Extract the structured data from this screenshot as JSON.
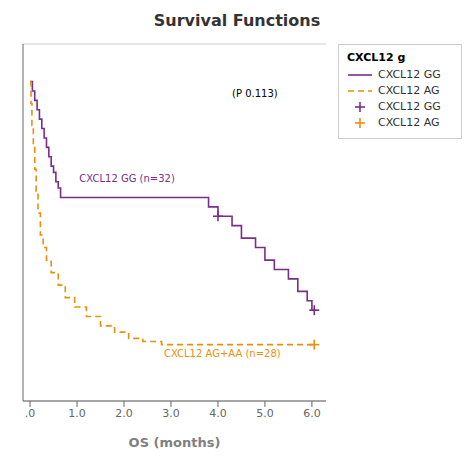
{
  "chart_data": {
    "type": "line",
    "title": "Survival Functions",
    "xlabel": "OS (months)",
    "xlim": [
      -0.15,
      6.3
    ],
    "ylim": [
      -0.02,
      1.12
    ],
    "xticks": [
      {
        "value": 0,
        "label": ".0"
      },
      {
        "value": 1.0,
        "label": "1.0"
      },
      {
        "value": 2.0,
        "label": "2.0"
      },
      {
        "value": 3.0,
        "label": "3.0"
      },
      {
        "value": 4.0,
        "label": "4.0"
      },
      {
        "value": 5.0,
        "label": "5.0"
      },
      {
        "value": 6.0,
        "label": "6.0"
      }
    ],
    "yticks": [
      0,
      0.25,
      0.5,
      0.75,
      1.0
    ],
    "tick_labels": "x",
    "grid": true,
    "legend": "right",
    "legend_title": "CXCL12 g",
    "series": [
      {
        "name": "CXCL12 GG",
        "type": "step",
        "color": "#7b2d8b",
        "line_style": "solid",
        "x": [
          0,
          0.05,
          0.1,
          0.15,
          0.2,
          0.25,
          0.3,
          0.35,
          0.4,
          0.45,
          0.5,
          0.55,
          0.6,
          0.65,
          0.7,
          0.75,
          0.8,
          0.9,
          1.0,
          1.5,
          2.0,
          2.5,
          3.0,
          3.5,
          3.8,
          4.0,
          4.3,
          4.5,
          4.8,
          5.0,
          5.2,
          5.5,
          5.7,
          5.9,
          6.0,
          6.1
        ],
        "values": [
          1.0,
          0.97,
          0.94,
          0.91,
          0.88,
          0.85,
          0.82,
          0.79,
          0.76,
          0.73,
          0.71,
          0.68,
          0.66,
          0.63,
          0.63,
          0.63,
          0.63,
          0.63,
          0.63,
          0.63,
          0.63,
          0.63,
          0.63,
          0.63,
          0.6,
          0.57,
          0.54,
          0.5,
          0.47,
          0.43,
          0.4,
          0.37,
          0.33,
          0.3,
          0.27,
          0.27
        ]
      },
      {
        "name": "CXCL12 AG",
        "type": "step",
        "color": "#e8900a",
        "line_style": "dashed",
        "x": [
          0,
          0.02,
          0.04,
          0.07,
          0.1,
          0.13,
          0.17,
          0.22,
          0.28,
          0.35,
          0.45,
          0.6,
          0.75,
          0.95,
          1.2,
          1.5,
          1.8,
          2.1,
          2.4,
          2.8,
          5.9,
          6.05
        ],
        "values": [
          1.0,
          0.93,
          0.86,
          0.79,
          0.72,
          0.65,
          0.58,
          0.51,
          0.47,
          0.43,
          0.39,
          0.35,
          0.31,
          0.28,
          0.25,
          0.22,
          0.2,
          0.18,
          0.17,
          0.16,
          0.16,
          0.16
        ]
      },
      {
        "name": "CXCL12 GG",
        "type": "scatter",
        "marker": "plus",
        "color": "#7b2d8b",
        "x": [
          4.0,
          6.05
        ],
        "values": [
          0.57,
          0.27
        ]
      },
      {
        "name": "CXCL12 AG",
        "type": "scatter",
        "marker": "plus",
        "color": "#e8900a",
        "x": [
          6.05
        ],
        "values": [
          0.16
        ]
      }
    ],
    "annotations": [
      {
        "text": "CXCL12 GG (n=32)",
        "x": 1.05,
        "y": 0.68,
        "color": "#7b2d8b"
      },
      {
        "text": "CXCL12 AG+AA (n=28)",
        "x": 2.85,
        "y": 0.12,
        "color": "#e8900a"
      },
      {
        "text": "(P 0.113)",
        "x": 4.3,
        "y": 0.95,
        "color": "#000000"
      }
    ]
  }
}
